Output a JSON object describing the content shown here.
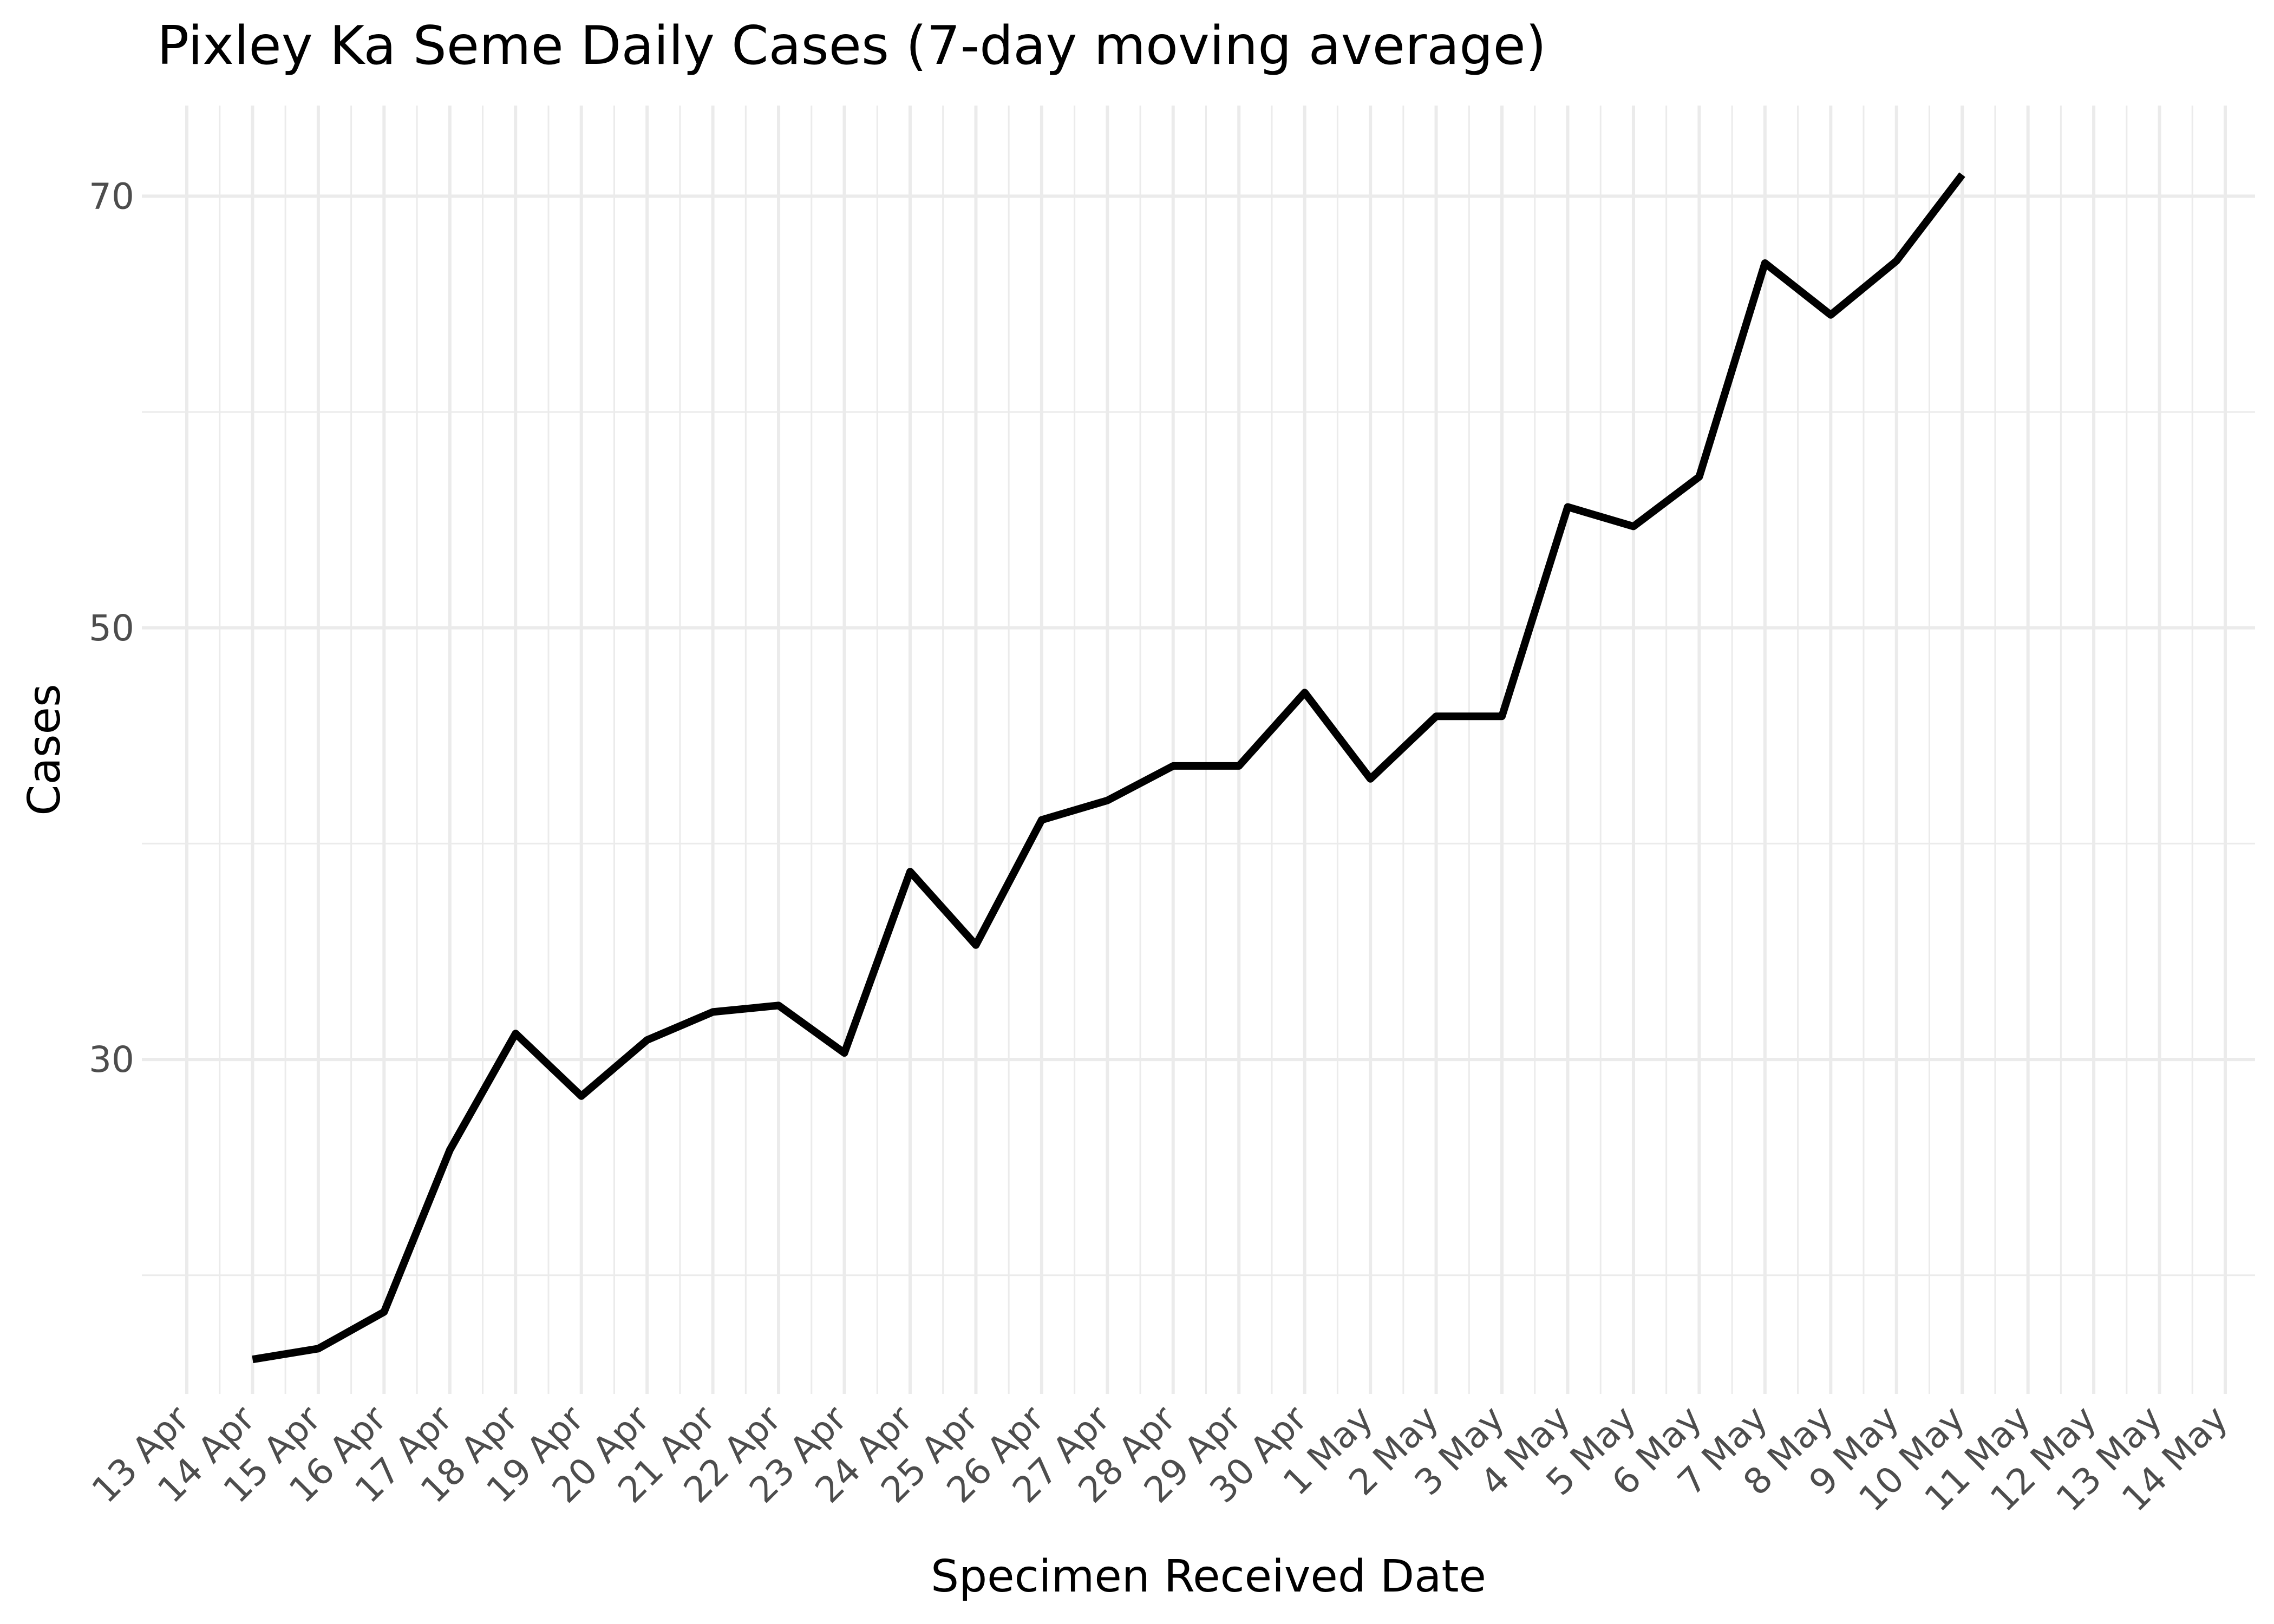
{
  "chart_data": {
    "type": "line",
    "title": "Pixley Ka Seme Daily Cases (7-day moving average)",
    "xlabel": "Specimen Received Date",
    "ylabel": "Cases",
    "x_axis_type": "date",
    "xlim": [
      "2020-04-13",
      "2020-05-14"
    ],
    "ylim": [
      14.5,
      74.2
    ],
    "x_ticks": [
      "2020-04-13",
      "2020-04-14",
      "2020-04-15",
      "2020-04-16",
      "2020-04-17",
      "2020-04-18",
      "2020-04-19",
      "2020-04-20",
      "2020-04-21",
      "2020-04-22",
      "2020-04-23",
      "2020-04-24",
      "2020-04-25",
      "2020-04-26",
      "2020-04-27",
      "2020-04-28",
      "2020-04-29",
      "2020-04-30",
      "2020-05-01",
      "2020-05-02",
      "2020-05-03",
      "2020-05-04",
      "2020-05-05",
      "2020-05-06",
      "2020-05-07",
      "2020-05-08",
      "2020-05-09",
      "2020-05-10",
      "2020-05-11",
      "2020-05-12",
      "2020-05-13",
      "2020-05-14"
    ],
    "x_tick_labels": [
      "13 Apr",
      "14 Apr",
      "15 Apr",
      "16 Apr",
      "17 Apr",
      "18 Apr",
      "19 Apr",
      "20 Apr",
      "21 Apr",
      "22 Apr",
      "23 Apr",
      "24 Apr",
      "25 Apr",
      "26 Apr",
      "27 Apr",
      "28 Apr",
      "29 Apr",
      "30 Apr",
      "1 May",
      "2 May",
      "3 May",
      "4 May",
      "5 May",
      "6 May",
      "7 May",
      "8 May",
      "9 May",
      "10 May",
      "11 May",
      "12 May",
      "13 May",
      "14 May"
    ],
    "y_ticks": [
      30,
      50,
      70
    ],
    "y_tick_labels": [
      "30",
      "50",
      "70"
    ],
    "y_minor_ticks": [
      20,
      40,
      60
    ],
    "grid": true,
    "legend": "none",
    "x": [
      "2020-04-14",
      "2020-04-15",
      "2020-04-16",
      "2020-04-17",
      "2020-04-18",
      "2020-04-19",
      "2020-04-20",
      "2020-04-21",
      "2020-04-22",
      "2020-04-23",
      "2020-04-24",
      "2020-04-25",
      "2020-04-26",
      "2020-04-27",
      "2020-04-28",
      "2020-04-29",
      "2020-04-30",
      "2020-05-01",
      "2020-05-02",
      "2020-05-03",
      "2020-05-04",
      "2020-05-05",
      "2020-05-06",
      "2020-05-07",
      "2020-05-08",
      "2020-05-09",
      "2020-05-10"
    ],
    "series": [
      {
        "values": [
          16.1,
          16.6,
          18.3,
          25.8,
          31.2,
          28.3,
          30.9,
          32.2,
          32.5,
          30.3,
          38.7,
          35.3,
          41.1,
          42.0,
          43.6,
          43.6,
          47.0,
          43.0,
          45.9,
          45.9,
          55.6,
          54.7,
          57.0,
          66.9,
          64.5,
          67.0,
          71.0
        ],
        "color": "#000000"
      }
    ]
  }
}
